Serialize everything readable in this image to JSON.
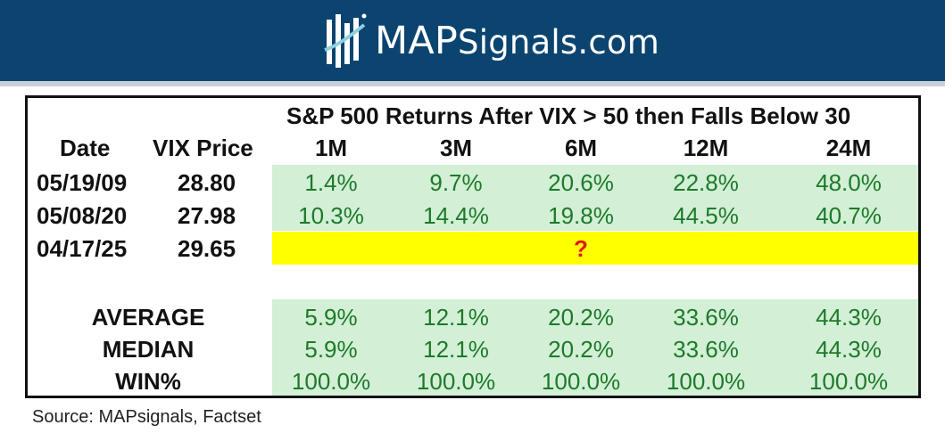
{
  "brand": {
    "name_part1": "MAP",
    "name_part2": "Signals.com",
    "icon": "chart-bars-logo-icon",
    "colors": {
      "banner": "#0c4470",
      "rule": "#c9d0d8",
      "positive": "#1d7a2a",
      "band_green": "#d3efd6",
      "band_yellow": "#ffff00",
      "question": "#e0141c"
    }
  },
  "chart_data": {
    "type": "table",
    "title": "S&P 500 Returns After VIX > 50 then Falls Below 30",
    "columns": [
      "Date",
      "VIX Price",
      "1M",
      "3M",
      "6M",
      "12M",
      "24M"
    ],
    "rows": [
      {
        "date": "05/19/09",
        "vix": "28.80",
        "returns": [
          "1.4%",
          "9.7%",
          "20.6%",
          "22.8%",
          "48.0%"
        ]
      },
      {
        "date": "05/08/20",
        "vix": "27.98",
        "returns": [
          "10.3%",
          "14.4%",
          "19.8%",
          "44.5%",
          "40.7%"
        ]
      },
      {
        "date": "04/17/25",
        "vix": "29.65",
        "returns_placeholder": "?"
      }
    ],
    "summary": [
      {
        "label": "AVERAGE",
        "values": [
          "5.9%",
          "12.1%",
          "20.2%",
          "33.6%",
          "44.3%"
        ]
      },
      {
        "label": "MEDIAN",
        "values": [
          "5.9%",
          "12.1%",
          "20.2%",
          "33.6%",
          "44.3%"
        ]
      },
      {
        "label": "WIN%",
        "values": [
          "100.0%",
          "100.0%",
          "100.0%",
          "100.0%",
          "100.0%"
        ]
      }
    ]
  },
  "source": "Source: MAPsignals, Factset"
}
